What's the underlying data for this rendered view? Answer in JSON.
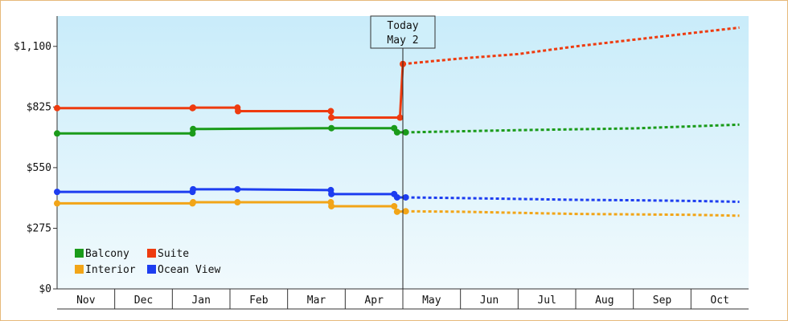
{
  "chart_data": {
    "type": "line",
    "title": "",
    "xlabel": "",
    "ylabel": "",
    "ylim": [
      0,
      1237.5
    ],
    "y_ticks": [
      {
        "value": 0,
        "label": "$0"
      },
      {
        "value": 275,
        "label": "$275"
      },
      {
        "value": 550,
        "label": "$550"
      },
      {
        "value": 825,
        "label": "$825"
      },
      {
        "value": 1100,
        "label": "$1,100"
      }
    ],
    "months": [
      "Nov",
      "Dec",
      "Jan",
      "Feb",
      "Mar",
      "Apr",
      "May",
      "Jun",
      "Jul",
      "Aug",
      "Sep",
      "Oct"
    ],
    "today": {
      "label": "Today",
      "date": "May 2",
      "x": 6.0
    },
    "legend_position": "bottom-left",
    "series": [
      {
        "name": "Balcony",
        "color": "#1a9b1a",
        "points": [
          [
            0.0,
            705
          ],
          [
            2.35,
            705
          ],
          [
            2.36,
            725
          ],
          [
            4.76,
            729
          ],
          [
            5.85,
            729
          ],
          [
            5.9,
            710
          ],
          [
            6.05,
            710
          ]
        ],
        "forecast": [
          [
            6.05,
            710
          ],
          [
            8.0,
            720
          ],
          [
            10.0,
            728
          ],
          [
            11.84,
            745
          ]
        ]
      },
      {
        "name": "Suite",
        "color": "#ee3b0f",
        "points": [
          [
            0.0,
            820
          ],
          [
            2.35,
            820
          ],
          [
            2.36,
            822
          ],
          [
            3.13,
            822
          ],
          [
            3.14,
            806
          ],
          [
            4.75,
            806
          ],
          [
            4.76,
            777
          ],
          [
            5.95,
            777
          ],
          [
            6.0,
            1020
          ]
        ],
        "forecast": [
          [
            6.0,
            1020
          ],
          [
            7.0,
            1045
          ],
          [
            8.0,
            1065
          ],
          [
            9.0,
            1100
          ],
          [
            10.0,
            1130
          ],
          [
            11.0,
            1160
          ],
          [
            11.84,
            1185
          ]
        ]
      },
      {
        "name": "Interior",
        "color": "#f2a518",
        "points": [
          [
            0.0,
            388
          ],
          [
            2.35,
            388
          ],
          [
            2.36,
            393
          ],
          [
            3.13,
            393
          ],
          [
            4.75,
            393
          ],
          [
            4.76,
            375
          ],
          [
            5.85,
            375
          ],
          [
            5.9,
            350
          ],
          [
            6.05,
            352
          ]
        ],
        "forecast": [
          [
            6.05,
            352
          ],
          [
            7.0,
            350
          ],
          [
            8.0,
            345
          ],
          [
            9.0,
            340
          ],
          [
            10.0,
            338
          ],
          [
            11.0,
            336
          ],
          [
            11.84,
            332
          ]
        ]
      },
      {
        "name": "Ocean View",
        "color": "#1d3df0",
        "points": [
          [
            0.0,
            440
          ],
          [
            2.35,
            440
          ],
          [
            2.36,
            452
          ],
          [
            3.13,
            452
          ],
          [
            4.75,
            448
          ],
          [
            4.76,
            430
          ],
          [
            5.85,
            430
          ],
          [
            5.9,
            415
          ],
          [
            6.05,
            415
          ]
        ],
        "forecast": [
          [
            6.05,
            415
          ],
          [
            7.0,
            412
          ],
          [
            8.0,
            408
          ],
          [
            9.0,
            404
          ],
          [
            10.0,
            402
          ],
          [
            11.0,
            399
          ],
          [
            11.84,
            395
          ]
        ]
      }
    ]
  }
}
